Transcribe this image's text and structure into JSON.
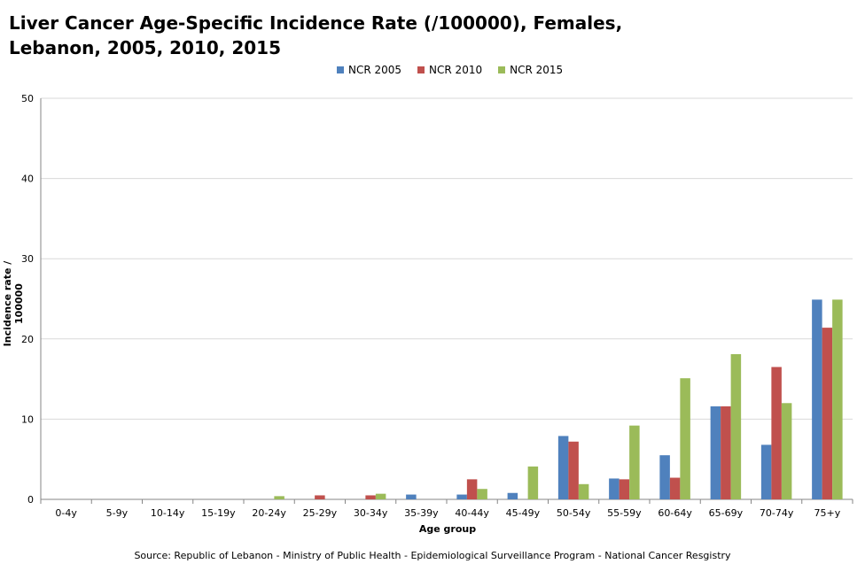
{
  "chart_data": {
    "type": "bar",
    "title": "Liver Cancer Age-Specific Incidence Rate (/100000), Females, Lebanon, 2005, 2010, 2015",
    "xlabel": "Age group",
    "ylabel": "Incidence rate / 100000",
    "ylim": [
      0,
      50
    ],
    "yticks": [
      0,
      10,
      20,
      30,
      40,
      50
    ],
    "grid": true,
    "legend_position": "top",
    "categories": [
      "0-4y",
      "5-9y",
      "10-14y",
      "15-19y",
      "20-24y",
      "25-29y",
      "30-34y",
      "35-39y",
      "40-44y",
      "45-49y",
      "50-54y",
      "55-59y",
      "60-64y",
      "65-69y",
      "70-74y",
      "75+y"
    ],
    "series": [
      {
        "name": "NCR 2005",
        "color": "#4f81bd",
        "values": [
          0,
          0,
          0,
          0,
          0,
          0,
          0,
          0.6,
          0.6,
          0.8,
          7.9,
          2.6,
          5.5,
          11.6,
          6.8,
          24.9
        ]
      },
      {
        "name": "NCR 2010",
        "color": "#c0504d",
        "values": [
          0,
          0,
          0,
          0,
          0,
          0.5,
          0.5,
          0,
          2.5,
          0,
          7.2,
          2.5,
          2.7,
          11.6,
          16.5,
          21.4
        ]
      },
      {
        "name": "NCR 2015",
        "color": "#9bbb59",
        "values": [
          0,
          0,
          0,
          0,
          0.4,
          0,
          0.7,
          0,
          1.3,
          4.1,
          1.9,
          9.2,
          15.1,
          18.1,
          12.0,
          24.9
        ]
      }
    ],
    "source": "Source: Republic of Lebanon - Ministry of Public Health - Epidemiological Surveillance Program - National Cancer Resgistry"
  }
}
